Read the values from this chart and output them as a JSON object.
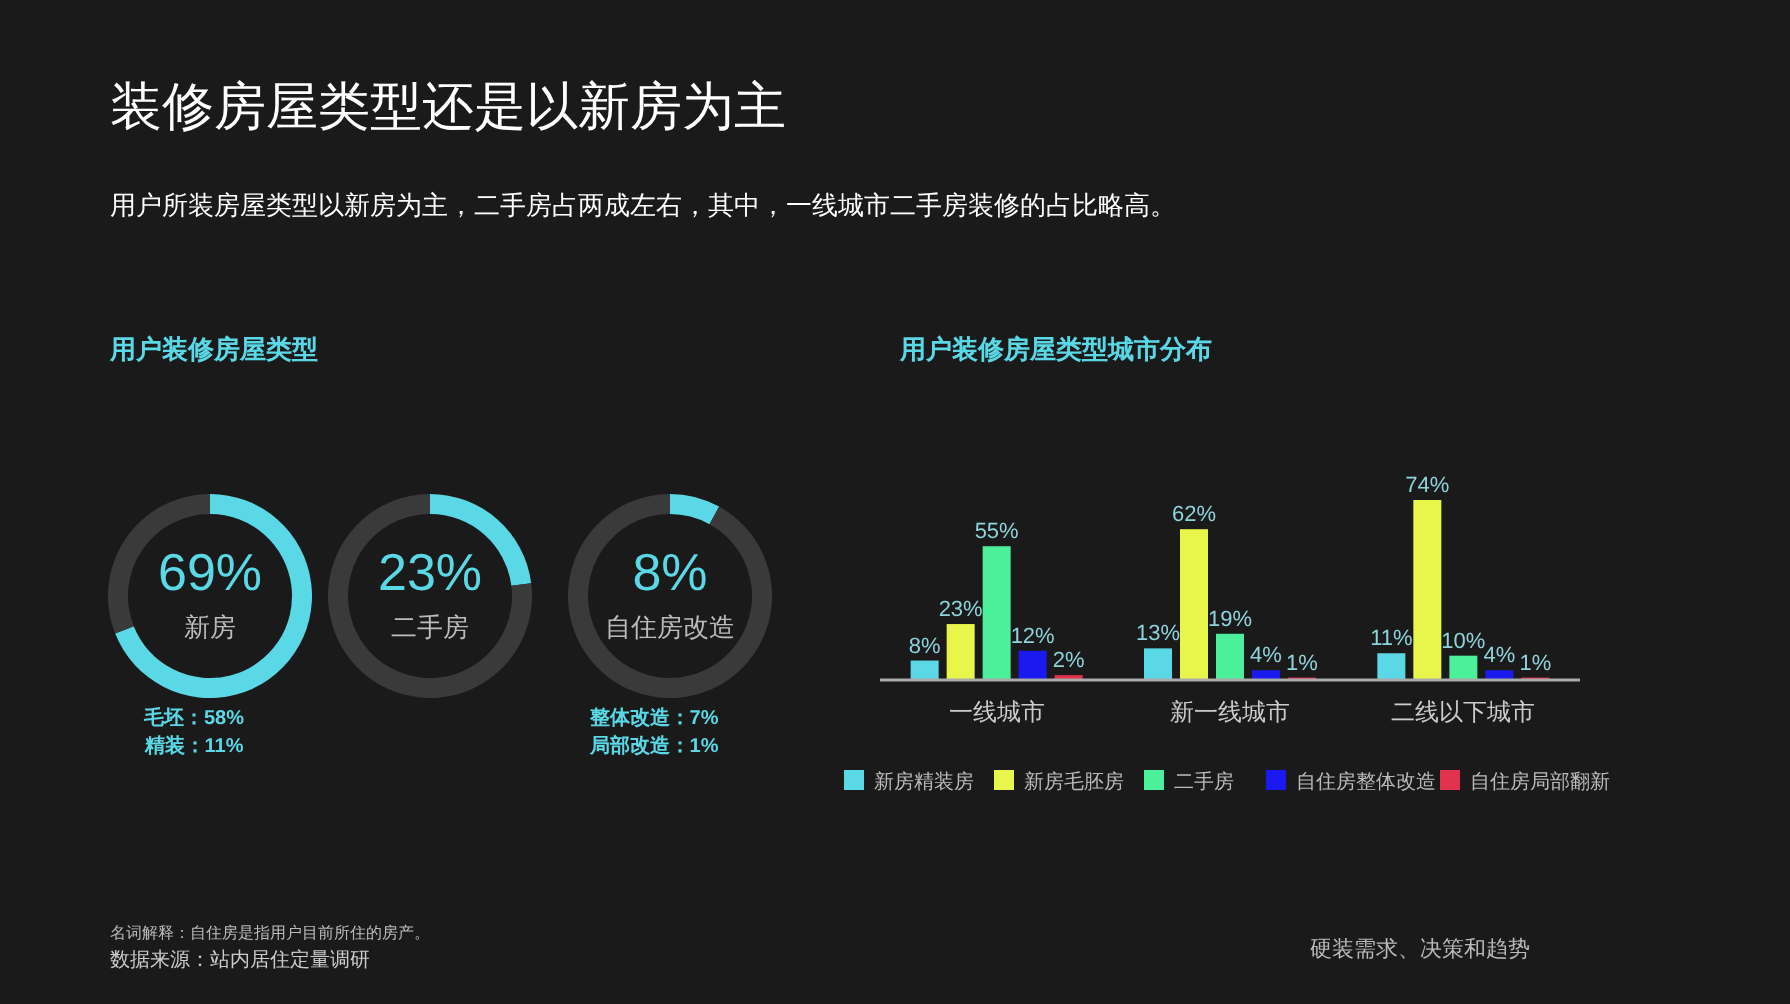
{
  "chart_data": [
    {
      "type": "other",
      "title": "装修房屋类型还是以新房为主",
      "subtitle": "用户所装房屋类型以新房为主，二手房占两成左右，其中，一线城市二手房装修的占比略高。",
      "annotations": [
        "名词解释：自住房是指用户目前所住的房产。",
        "数据来源：站内居住定量调研",
        "硬装需求、决策和趋势"
      ]
    },
    {
      "type": "donut",
      "title": "用户装修房屋类型",
      "categories": [
        "新房",
        null
      ],
      "values": [
        69,
        31
      ],
      "colors": [
        "#5ad8e6",
        "#3a3a3a"
      ],
      "value_labels": [
        "69%",
        null
      ],
      "annotations": [
        "毛坯：58%",
        "精装：11%"
      ]
    },
    {
      "type": "donut",
      "categories": [
        "二手房",
        null
      ],
      "values": [
        23,
        77
      ],
      "colors": [
        "#5ad8e6",
        "#3a3a3a"
      ],
      "value_labels": [
        "23%",
        null
      ]
    },
    {
      "type": "donut",
      "categories": [
        "自住房改造",
        null
      ],
      "values": [
        8,
        92
      ],
      "colors": [
        "#5ad8e6",
        "#3a3a3a"
      ],
      "value_labels": [
        "8%",
        null
      ],
      "annotations": [
        "整体改造：7%",
        "局部改造：1%"
      ]
    },
    {
      "type": "bar",
      "title": "用户装修房屋类型城市分布",
      "categories": [
        "一线城市",
        "新一线城市",
        "二线以下城市"
      ],
      "legend": "bottom",
      "series": [
        {
          "name": "新房精装房",
          "color": "#5ad8e6",
          "values": [
            8,
            13,
            11
          ],
          "value_labels": [
            "8%",
            "13%",
            "11%"
          ]
        },
        {
          "name": "新房毛胚房",
          "color": "#e8f54a",
          "values": [
            23,
            62,
            74
          ],
          "value_labels": [
            "23%",
            "62%",
            "74%"
          ]
        },
        {
          "name": "二手房",
          "color": "#4cf09a",
          "values": [
            55,
            19,
            10
          ],
          "value_labels": [
            "55%",
            "19%",
            "10%"
          ]
        },
        {
          "name": "自住房整体改造",
          "color": "#1a1af0",
          "values": [
            12,
            4,
            4
          ],
          "value_labels": [
            "12%",
            "4%",
            "4%"
          ]
        },
        {
          "name": "自住房局部翻新",
          "color": "#e0344e",
          "values": [
            2,
            1,
            1
          ],
          "value_labels": [
            "2%",
            "1%",
            "1%"
          ]
        }
      ]
    }
  ]
}
